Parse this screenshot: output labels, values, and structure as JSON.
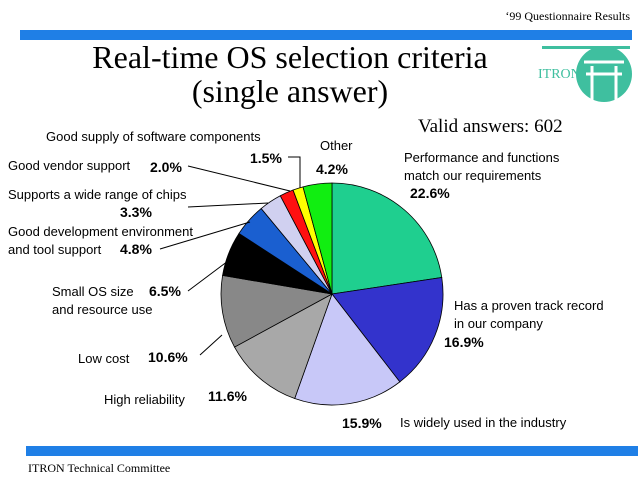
{
  "header": {
    "caption": "‘99 Questionnaire Results"
  },
  "title_line1": "Real-time OS selection criteria",
  "title_line2": "(single answer)",
  "valid_answers": "Valid answers: 602",
  "footer": "ITRON Technical Committee",
  "logo": {
    "text": "ITRON",
    "color": "#3fbf9f"
  },
  "colors": {
    "accent_bar": "#1f7fe6"
  },
  "chart_data": {
    "type": "pie",
    "title": "Real-time OS selection criteria (single answer)",
    "total_label": "Valid answers: 602",
    "slices": [
      {
        "label": "Performance and functions match our requirements",
        "label_lines": [
          "Performance and functions",
          "match our requirements"
        ],
        "value": 22.6,
        "value_label": "22.6%",
        "color": "#1fcf8f"
      },
      {
        "label": "Has a proven track record in our company",
        "label_lines": [
          "Has a proven track record",
          "in our company"
        ],
        "value": 16.9,
        "value_label": "16.9%",
        "color": "#3333cc"
      },
      {
        "label": "Is widely used in the industry",
        "label_lines": [
          "Is widely used in the industry"
        ],
        "value": 15.9,
        "value_label": "15.9%",
        "color": "#c8c8f8"
      },
      {
        "label": "High reliability",
        "label_lines": [
          "High reliability"
        ],
        "value": 11.6,
        "value_label": "11.6%",
        "color": "#a8a8a8"
      },
      {
        "label": "Low cost",
        "label_lines": [
          "Low cost"
        ],
        "value": 10.6,
        "value_label": "10.6%",
        "color": "#888888"
      },
      {
        "label": "Small OS size and resource use",
        "label_lines": [
          "Small OS size",
          "and resource use"
        ],
        "value": 6.5,
        "value_label": "6.5%",
        "color": "#000000"
      },
      {
        "label": "Good development environment and tool support",
        "label_lines": [
          "Good development environment",
          "and tool support"
        ],
        "value": 4.8,
        "value_label": "4.8%",
        "color": "#1a5fd0"
      },
      {
        "label": "Supports a wide range of chips",
        "label_lines": [
          "Supports a wide range of chips"
        ],
        "value": 3.3,
        "value_label": "3.3%",
        "color": "#d0d0f0"
      },
      {
        "label": "Good vendor support",
        "label_lines": [
          "Good vendor support"
        ],
        "value": 2.0,
        "value_label": "2.0%",
        "color": "#ff1010"
      },
      {
        "label": "Good supply of software components",
        "label_lines": [
          "Good supply of software components"
        ],
        "value": 1.5,
        "value_label": "1.5%",
        "color": "#ffff00"
      },
      {
        "label": "Other",
        "label_lines": [
          "Other"
        ],
        "value": 4.2,
        "value_label": "4.2%",
        "color": "#11ee11"
      }
    ]
  }
}
